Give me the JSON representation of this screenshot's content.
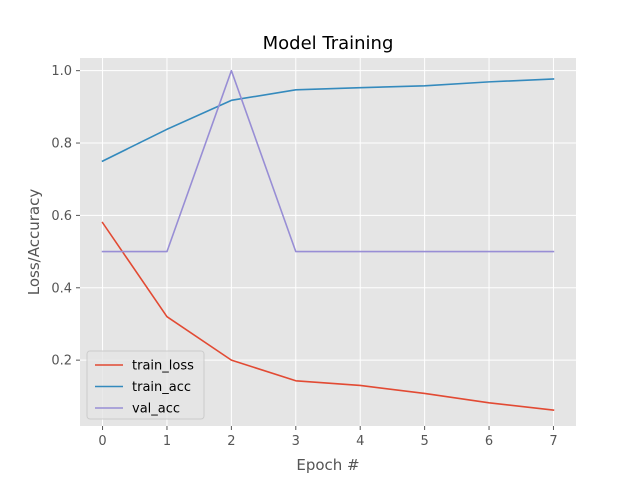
{
  "chart_data": {
    "type": "line",
    "title": "Model Training",
    "xlabel": "Epoch #",
    "ylabel": "Loss/Accuracy",
    "x": [
      0,
      1,
      2,
      3,
      4,
      5,
      6,
      7
    ],
    "xlim": [
      -0.35,
      7.35
    ],
    "ylim": [
      0.018,
      1.035
    ],
    "xticks": [
      0,
      1,
      2,
      3,
      4,
      5,
      6,
      7
    ],
    "yticks": [
      0.2,
      0.4,
      0.6,
      0.8,
      1.0
    ],
    "ytick_labels": [
      "0.2",
      "0.4",
      "0.6",
      "0.8",
      "1.0"
    ],
    "grid": true,
    "legend_position": "lower-left",
    "series": [
      {
        "name": "train_loss",
        "color": "#E24A33",
        "values": [
          0.58,
          0.32,
          0.2,
          0.143,
          0.13,
          0.108,
          0.082,
          0.062
        ]
      },
      {
        "name": "train_acc",
        "color": "#348ABD",
        "values": [
          0.75,
          0.838,
          0.918,
          0.947,
          0.953,
          0.958,
          0.969,
          0.977
        ]
      },
      {
        "name": "val_acc",
        "color": "#988ED5",
        "values": [
          0.5,
          0.5,
          1.0,
          0.5,
          0.5,
          0.5,
          0.5,
          0.5
        ]
      }
    ]
  }
}
